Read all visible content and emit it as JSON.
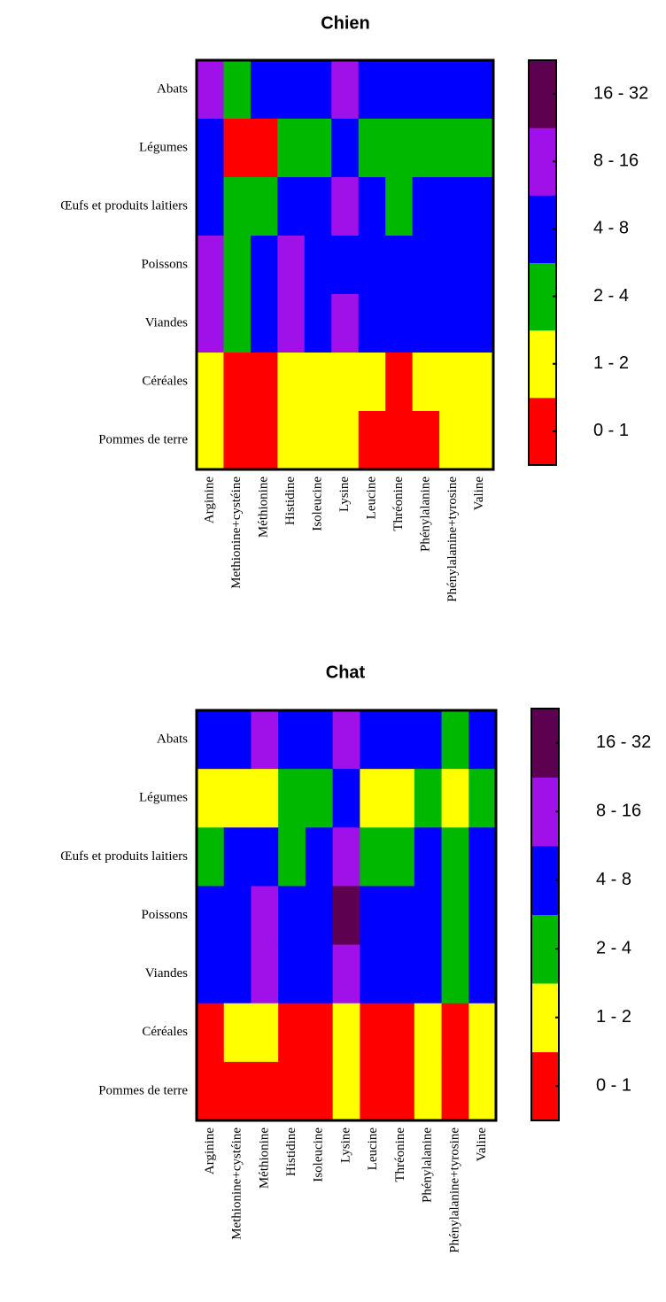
{
  "chart_data": [
    {
      "type": "heatmap",
      "title": "Chien",
      "rows": [
        "Abats",
        "Légumes",
        "Œufs et produits laitiers",
        "Poissons",
        "Viandes",
        "Céréales",
        "Pommes de terre"
      ],
      "categories": [
        "Arginine",
        "Methionine+cystéine",
        "Méthionine",
        "Histidine",
        "Isoleucine",
        "Lysine",
        "Leucine",
        "Thréonine",
        "Phénylalanine",
        "Phénylalanine+tyrosine",
        "Valine"
      ],
      "values": [
        [
          12,
          3,
          6,
          6,
          6,
          12,
          6,
          6,
          6,
          6,
          6
        ],
        [
          6,
          0.5,
          0.5,
          3,
          3,
          6,
          3,
          3,
          3,
          3,
          3
        ],
        [
          6,
          3,
          3,
          6,
          6,
          12,
          6,
          3,
          6,
          6,
          6
        ],
        [
          12,
          3,
          6,
          12,
          6,
          6,
          6,
          6,
          6,
          6,
          6
        ],
        [
          12,
          3,
          6,
          12,
          6,
          12,
          6,
          6,
          6,
          6,
          6
        ],
        [
          1.5,
          0.5,
          0.5,
          1.5,
          1.5,
          1.5,
          1.5,
          0.5,
          1.5,
          1.5,
          1.5
        ],
        [
          1.5,
          0.5,
          0.5,
          1.5,
          1.5,
          1.5,
          0.5,
          0.5,
          0.5,
          1.5,
          1.5
        ]
      ],
      "bins": [
        0,
        1,
        2,
        4,
        8,
        16,
        32
      ],
      "colors": [
        "#ff0000",
        "#ffff00",
        "#00b800",
        "#0000ff",
        "#a010e8",
        "#5e0050"
      ],
      "legend_labels": [
        "0 - 1",
        "1 - 2",
        "2 - 4",
        "4 - 8",
        "8 - 16",
        "16 - 32"
      ]
    },
    {
      "type": "heatmap",
      "title": "Chat",
      "rows": [
        "Abats",
        "Légumes",
        "Œufs et produits laitiers",
        "Poissons",
        "Viandes",
        "Céréales",
        "Pommes de terre"
      ],
      "categories": [
        "Arginine",
        "Methionine+cystéine",
        "Méthionine",
        "Histidine",
        "Isoleucine",
        "Lysine",
        "Leucine",
        "Thréonine",
        "Phénylalanine",
        "Phénylalanine+tyrosine",
        "Valine"
      ],
      "values": [
        [
          6,
          6,
          12,
          6,
          6,
          12,
          6,
          6,
          6,
          3,
          6
        ],
        [
          1.5,
          1.5,
          1.5,
          3,
          3,
          6,
          1.5,
          1.5,
          3,
          1.5,
          3
        ],
        [
          3,
          6,
          6,
          3,
          6,
          12,
          3,
          3,
          6,
          3,
          6
        ],
        [
          6,
          6,
          12,
          6,
          6,
          24,
          6,
          6,
          6,
          3,
          6
        ],
        [
          6,
          6,
          12,
          6,
          6,
          12,
          6,
          6,
          6,
          3,
          6
        ],
        [
          0.5,
          1.5,
          1.5,
          0.5,
          0.5,
          1.5,
          0.5,
          0.5,
          1.5,
          0.5,
          1.5
        ],
        [
          0.5,
          0.5,
          0.5,
          0.5,
          0.5,
          1.5,
          0.5,
          0.5,
          1.5,
          0.5,
          1.5
        ]
      ],
      "bins": [
        0,
        1,
        2,
        4,
        8,
        16,
        32
      ],
      "colors": [
        "#ff0000",
        "#ffff00",
        "#00b800",
        "#0000ff",
        "#a010e8",
        "#5e0050"
      ],
      "legend_labels": [
        "0 - 1",
        "1 - 2",
        "2 - 4",
        "4 - 8",
        "8 - 16",
        "16 - 32"
      ]
    }
  ]
}
